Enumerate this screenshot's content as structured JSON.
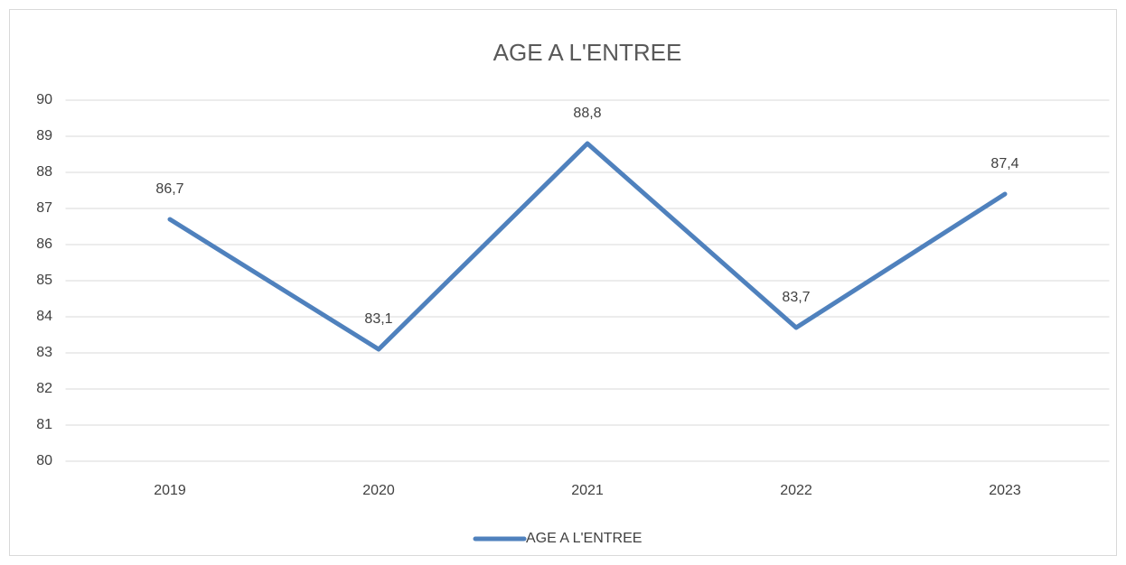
{
  "chart_data": {
    "type": "line",
    "title": "AGE A L'ENTREE",
    "categories": [
      "2019",
      "2020",
      "2021",
      "2022",
      "2023"
    ],
    "series": [
      {
        "name": "AGE A L'ENTREE",
        "color": "#4f81bd",
        "values": [
          86.7,
          83.1,
          88.8,
          83.7,
          87.4
        ],
        "value_labels": [
          "86,7",
          "83,1",
          "88,8",
          "83,7",
          "87,4"
        ]
      }
    ],
    "ylim": [
      80,
      90
    ],
    "yticks": [
      80,
      81,
      82,
      83,
      84,
      85,
      86,
      87,
      88,
      89,
      90
    ],
    "grid": true,
    "legend": "bottom"
  }
}
